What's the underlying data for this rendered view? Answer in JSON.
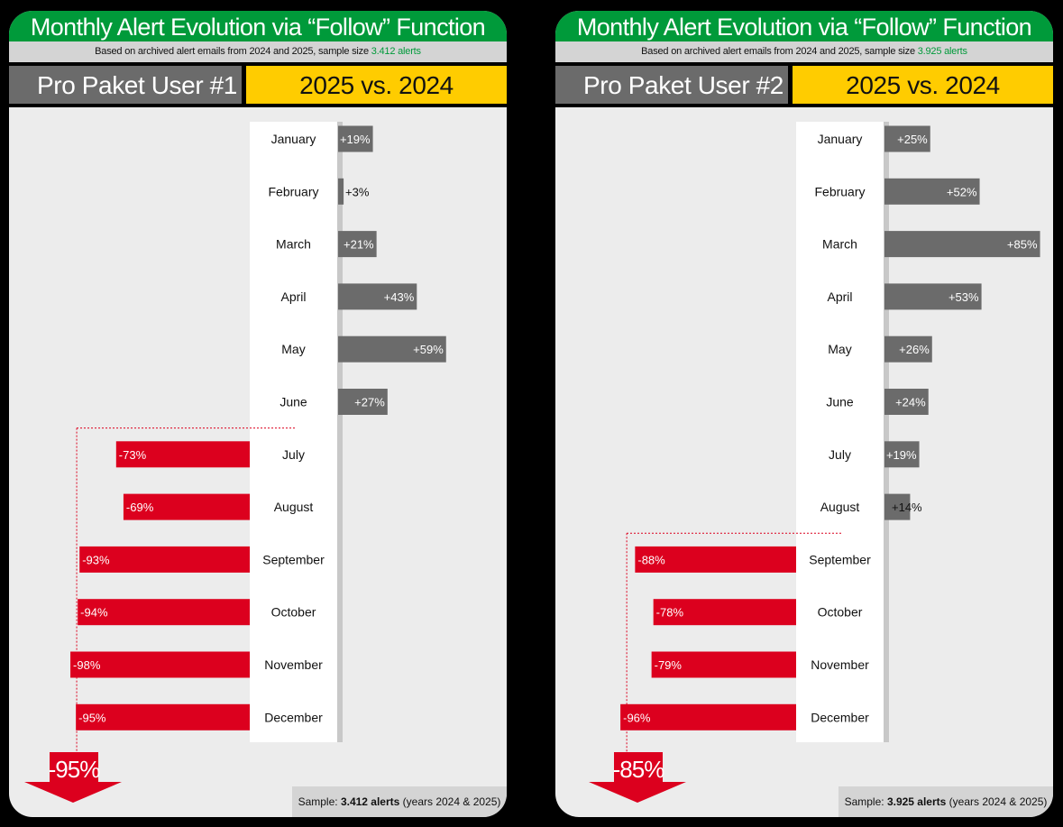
{
  "panels": [
    {
      "title": "Monthly Alert Evolution via “Follow” Function",
      "subtitle_prefix": "Based on archived alert emails from 2024 and 2025, sample size ",
      "subtitle_highlight": "3.412 alerts",
      "user_label": "Pro Paket User #1",
      "comparison_label": "2025 vs. 2024",
      "arrow_label": "-95%",
      "sample_prefix": "Sample: ",
      "sample_bold": "3.412 alerts",
      "sample_suffix": " (years 2024 & 2025)"
    },
    {
      "title": "Monthly Alert Evolution via “Follow” Function",
      "subtitle_prefix": "Based on archived alert emails from 2024 and 2025, sample size ",
      "subtitle_highlight": "3.925 alerts",
      "user_label": "Pro Paket User #2",
      "comparison_label": "2025 vs. 2024",
      "arrow_label": "-85%",
      "sample_prefix": "Sample: ",
      "sample_bold": "3.925 alerts",
      "sample_suffix": " (years 2024 & 2025)"
    }
  ],
  "colors": {
    "title_green": "#009a3a",
    "positive_bar": "#6b6b6b",
    "negative_bar": "#dc001e",
    "header_yellow": "#ffcc00",
    "panel_bg": "#ececec"
  },
  "chart_data": [
    {
      "type": "bar",
      "orientation": "horizontal-diverging",
      "categories": [
        "January",
        "February",
        "March",
        "April",
        "May",
        "June",
        "July",
        "August",
        "September",
        "October",
        "November",
        "December"
      ],
      "values": [
        19,
        3,
        21,
        43,
        59,
        27,
        -73,
        -69,
        -93,
        -94,
        -98,
        -95
      ],
      "value_labels": [
        "+19%",
        "+3%",
        "+21%",
        "+43%",
        "+59%",
        "+27%",
        "-73%",
        "-69%",
        "-93%",
        "-94%",
        "-98%",
        "-95%"
      ],
      "unit": "%",
      "summary_arrow": "-95%"
    },
    {
      "type": "bar",
      "orientation": "horizontal-diverging",
      "categories": [
        "January",
        "February",
        "March",
        "April",
        "May",
        "June",
        "July",
        "August",
        "September",
        "October",
        "November",
        "December"
      ],
      "values": [
        25,
        52,
        85,
        53,
        26,
        24,
        19,
        14,
        -88,
        -78,
        -79,
        -96
      ],
      "value_labels": [
        "+25%",
        "+52%",
        "+85%",
        "+53%",
        "+26%",
        "+24%",
        "+19%",
        "+14%",
        "-88%",
        "-78%",
        "-79%",
        "-96%"
      ],
      "unit": "%",
      "summary_arrow": "-85%"
    }
  ]
}
